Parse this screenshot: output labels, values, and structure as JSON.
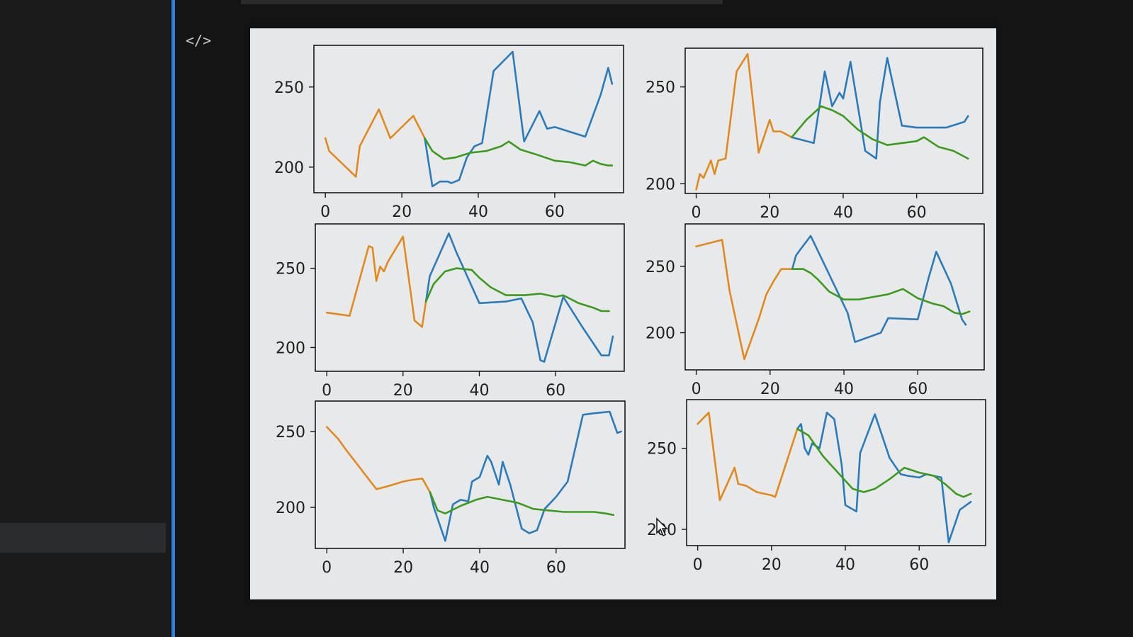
{
  "toolbar": {
    "code_icon_glyph": "</>"
  },
  "colors": {
    "history": "#e08a1e",
    "actual": "#2b7bba",
    "prediction": "#3c9a1e"
  },
  "chart_data": [
    {
      "type": "line",
      "xticks": [
        0,
        20,
        40,
        60
      ],
      "yticks": [
        200,
        250
      ],
      "xlim": [
        -3,
        78
      ],
      "ylim": [
        184,
        276
      ],
      "series": [
        {
          "role": "history",
          "x": [
            0,
            1,
            8,
            9,
            14,
            17,
            23,
            26
          ],
          "y": [
            218,
            210,
            194,
            213,
            236,
            218,
            232,
            218
          ]
        },
        {
          "role": "actual",
          "x": [
            26,
            28,
            30,
            32,
            33,
            35,
            37,
            39,
            41,
            44,
            49,
            52,
            56,
            58,
            60,
            68,
            72,
            74,
            75
          ],
          "y": [
            218,
            188,
            191,
            191,
            190,
            192,
            206,
            213,
            215,
            260,
            272,
            216,
            235,
            224,
            225,
            219,
            245,
            262,
            252
          ]
        },
        {
          "role": "prediction",
          "x": [
            26,
            28,
            31,
            34,
            38,
            42,
            46,
            48,
            51,
            55,
            60,
            64,
            68,
            70,
            72,
            74,
            75
          ],
          "y": [
            218,
            210,
            205,
            206,
            209,
            210,
            213,
            216,
            211,
            208,
            204,
            203,
            201,
            204,
            202,
            201,
            201
          ]
        }
      ]
    },
    {
      "type": "line",
      "xticks": [
        0,
        20,
        40,
        60
      ],
      "yticks": [
        200,
        250
      ],
      "xlim": [
        -3,
        78
      ],
      "ylim": [
        195,
        270
      ],
      "series": [
        {
          "role": "history",
          "x": [
            0,
            1,
            2,
            4,
            5,
            6,
            8,
            11,
            14,
            17,
            20,
            21,
            23,
            26
          ],
          "y": [
            197,
            205,
            203,
            212,
            205,
            212,
            213,
            258,
            267,
            216,
            233,
            227,
            227,
            224
          ]
        },
        {
          "role": "actual",
          "x": [
            26,
            32,
            35,
            37,
            39,
            40,
            42,
            46,
            49,
            50,
            52,
            56,
            60,
            64,
            68,
            73,
            74
          ],
          "y": [
            224,
            221,
            258,
            240,
            247,
            244,
            263,
            217,
            213,
            242,
            265,
            230,
            229,
            229,
            229,
            232,
            235
          ]
        },
        {
          "role": "prediction",
          "x": [
            26,
            30,
            34,
            37,
            40,
            44,
            48,
            52,
            56,
            60,
            62,
            66,
            70,
            73,
            74
          ],
          "y": [
            224,
            233,
            240,
            238,
            235,
            228,
            223,
            220,
            221,
            222,
            224,
            219,
            217,
            214,
            213
          ]
        }
      ]
    },
    {
      "type": "line",
      "xticks": [
        0,
        20,
        40,
        60
      ],
      "yticks": [
        200,
        250
      ],
      "xlim": [
        -3,
        78
      ],
      "ylim": [
        185,
        278
      ],
      "series": [
        {
          "role": "history",
          "x": [
            0,
            6,
            11,
            12,
            13,
            14,
            15,
            16,
            20,
            23,
            25,
            26
          ],
          "y": [
            222,
            220,
            264,
            263,
            242,
            251,
            248,
            254,
            270,
            217,
            213,
            229
          ]
        },
        {
          "role": "actual",
          "x": [
            26,
            27,
            32,
            34,
            40,
            47,
            51,
            54,
            56,
            57,
            62,
            67,
            72,
            74,
            75
          ],
          "y": [
            229,
            245,
            272,
            260,
            228,
            229,
            231,
            216,
            192,
            191,
            232,
            213,
            195,
            195,
            207
          ]
        },
        {
          "role": "prediction",
          "x": [
            26,
            28,
            31,
            34,
            38,
            40,
            43,
            47,
            52,
            56,
            60,
            62,
            66,
            70,
            72,
            74
          ],
          "y": [
            229,
            240,
            248,
            250,
            249,
            244,
            238,
            233,
            233,
            234,
            232,
            233,
            228,
            225,
            223,
            223
          ]
        }
      ]
    },
    {
      "type": "line",
      "xticks": [
        0,
        20,
        40,
        60
      ],
      "yticks": [
        200,
        250
      ],
      "xlim": [
        -3,
        78
      ],
      "ylim": [
        172,
        282
      ],
      "series": [
        {
          "role": "history",
          "x": [
            0,
            7,
            9,
            13,
            17,
            19,
            21,
            23,
            26
          ],
          "y": [
            265,
            270,
            232,
            180,
            211,
            229,
            239,
            248,
            248
          ]
        },
        {
          "role": "actual",
          "x": [
            26,
            27,
            28,
            31,
            41,
            43,
            50,
            52,
            60,
            63,
            65,
            69,
            72,
            73
          ],
          "y": [
            248,
            258,
            262,
            273,
            215,
            193,
            200,
            211,
            210,
            242,
            261,
            237,
            210,
            206
          ]
        },
        {
          "role": "prediction",
          "x": [
            26,
            29,
            31,
            33,
            36,
            40,
            44,
            48,
            52,
            56,
            60,
            64,
            67,
            70,
            72,
            74
          ],
          "y": [
            248,
            248,
            245,
            240,
            231,
            225,
            225,
            227,
            229,
            233,
            226,
            222,
            220,
            215,
            214,
            216
          ]
        }
      ]
    },
    {
      "type": "line",
      "xticks": [
        0,
        20,
        40,
        60
      ],
      "yticks": [
        200,
        250
      ],
      "xlim": [
        -3,
        78
      ],
      "ylim": [
        173,
        270
      ],
      "series": [
        {
          "role": "history",
          "x": [
            0,
            3,
            5,
            13,
            16,
            20,
            22,
            25,
            27
          ],
          "y": [
            253,
            245,
            238,
            212,
            214,
            217,
            218,
            219,
            210
          ]
        },
        {
          "role": "actual",
          "x": [
            27,
            28,
            31,
            33,
            35,
            37,
            38,
            40,
            42,
            43,
            45,
            46,
            48,
            51,
            53,
            55,
            57,
            60,
            63,
            67,
            70,
            74,
            76,
            77
          ],
          "y": [
            210,
            200,
            178,
            202,
            205,
            204,
            217,
            220,
            234,
            230,
            215,
            230,
            215,
            186,
            183,
            185,
            199,
            207,
            217,
            261,
            262,
            263,
            249,
            250
          ]
        },
        {
          "role": "prediction",
          "x": [
            27,
            29,
            31,
            35,
            39,
            42,
            46,
            50,
            54,
            58,
            62,
            66,
            70,
            73,
            75
          ],
          "y": [
            210,
            198,
            196,
            201,
            205,
            207,
            205,
            203,
            199,
            198,
            197,
            197,
            197,
            196,
            195
          ]
        }
      ]
    },
    {
      "type": "line",
      "xticks": [
        0,
        20,
        40,
        60
      ],
      "yticks": [
        200,
        250
      ],
      "xlim": [
        -3,
        78
      ],
      "ylim": [
        190,
        280
      ],
      "series": [
        {
          "role": "history",
          "x": [
            0,
            3,
            6,
            10,
            11,
            13,
            16,
            20,
            21,
            24,
            27
          ],
          "y": [
            265,
            272,
            218,
            238,
            228,
            227,
            223,
            221,
            220,
            241,
            262
          ]
        },
        {
          "role": "actual",
          "x": [
            27,
            28,
            29,
            30,
            31,
            33,
            35,
            37,
            39,
            40,
            43,
            44,
            48,
            52,
            55,
            57,
            60,
            62,
            66,
            68,
            71,
            74
          ],
          "y": [
            262,
            265,
            250,
            246,
            253,
            250,
            272,
            268,
            240,
            215,
            211,
            247,
            271,
            244,
            234,
            233,
            232,
            234,
            232,
            192,
            212,
            217
          ]
        },
        {
          "role": "prediction",
          "x": [
            27,
            30,
            34,
            38,
            42,
            45,
            48,
            52,
            56,
            60,
            64,
            67,
            70,
            72,
            74
          ],
          "y": [
            262,
            258,
            245,
            235,
            225,
            223,
            225,
            231,
            238,
            235,
            233,
            228,
            222,
            220,
            222
          ]
        }
      ]
    }
  ]
}
